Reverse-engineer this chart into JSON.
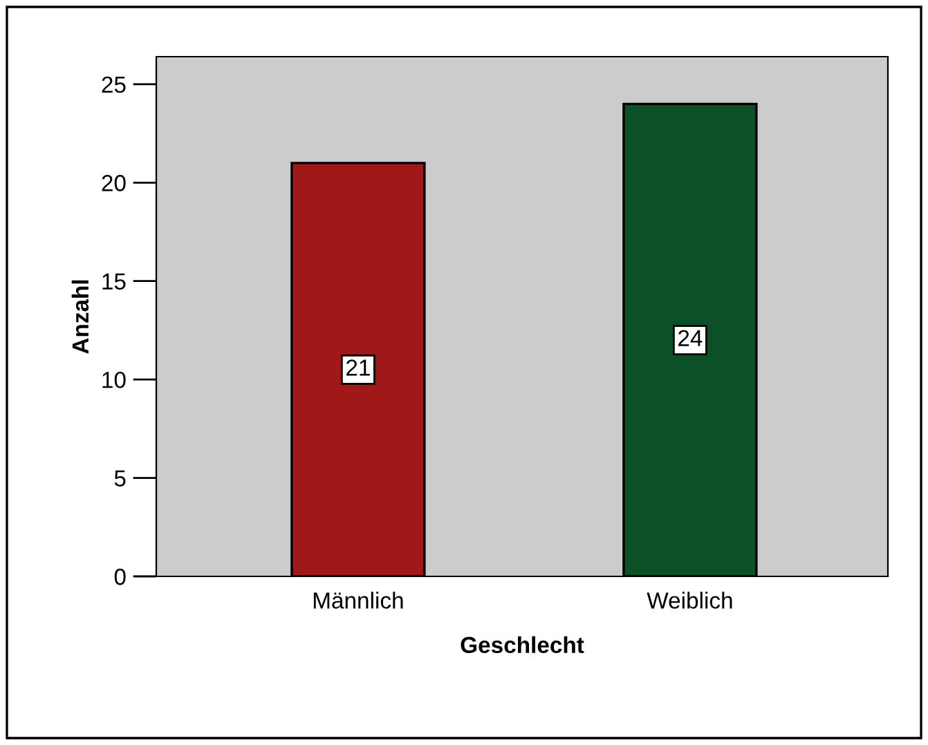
{
  "chart_data": {
    "type": "bar",
    "xlabel": "Geschlecht",
    "ylabel": "Anzahl",
    "categories": [
      "Männlich",
      "Weiblich"
    ],
    "values": [
      21,
      24
    ],
    "colors": [
      "#a01818",
      "#0b5027"
    ],
    "ylim": [
      0,
      26.4
    ],
    "yticks": [
      0,
      5,
      10,
      15,
      20,
      25
    ],
    "grid": false,
    "data_labels": true
  }
}
